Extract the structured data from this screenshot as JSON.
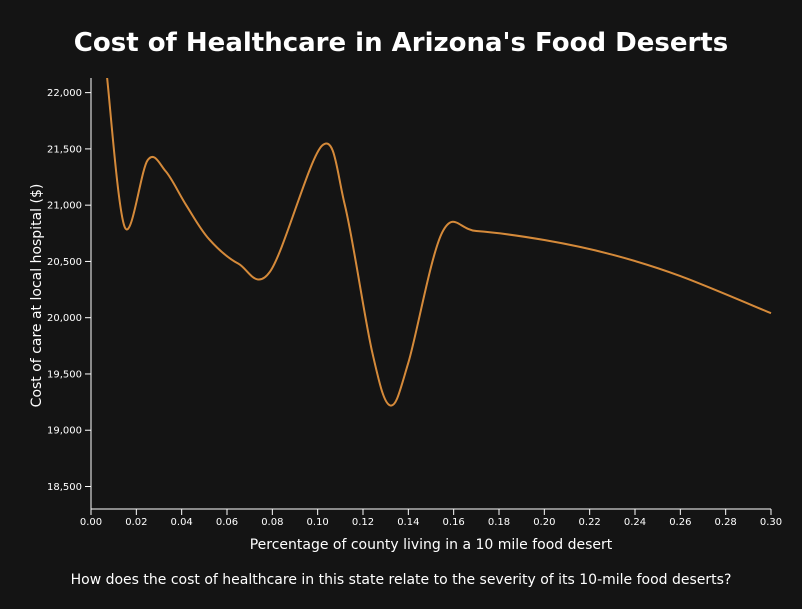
{
  "chart_data": {
    "type": "line",
    "title": "Cost of Healthcare in Arizona's Food Deserts",
    "xlabel": "Percentage of county living in a 10 mile food desert",
    "ylabel": "Cost of care at local hospital ($)",
    "xlim": [
      0,
      0.3
    ],
    "ylim": [
      18300,
      22130
    ],
    "x_ticks": [
      "0.00",
      "0.02",
      "0.04",
      "0.06",
      "0.08",
      "0.10",
      "0.12",
      "0.14",
      "0.16",
      "0.18",
      "0.20",
      "0.22",
      "0.24",
      "0.26",
      "0.28",
      "0.30"
    ],
    "y_ticks": [
      "18,500",
      "19,000",
      "19,500",
      "20,000",
      "20,500",
      "21,000",
      "21,500",
      "22,000"
    ],
    "grid": false,
    "legend": "none",
    "series": [
      {
        "color": "#d58a3a",
        "points": [
          [
            0.007,
            22150
          ],
          [
            0.015,
            20800
          ],
          [
            0.025,
            21400
          ],
          [
            0.033,
            21300
          ],
          [
            0.042,
            21000
          ],
          [
            0.052,
            20700
          ],
          [
            0.065,
            20480
          ],
          [
            0.079,
            20410
          ],
          [
            0.102,
            21530
          ],
          [
            0.112,
            21000
          ],
          [
            0.124,
            19700
          ],
          [
            0.132,
            19220
          ],
          [
            0.14,
            19600
          ],
          [
            0.155,
            20760
          ],
          [
            0.17,
            20770
          ],
          [
            0.2,
            20690
          ],
          [
            0.23,
            20560
          ],
          [
            0.26,
            20370
          ],
          [
            0.3,
            20040
          ]
        ]
      }
    ]
  },
  "caption": "How does the cost of healthcare in this state relate to the severity of its 10-mile food deserts?"
}
